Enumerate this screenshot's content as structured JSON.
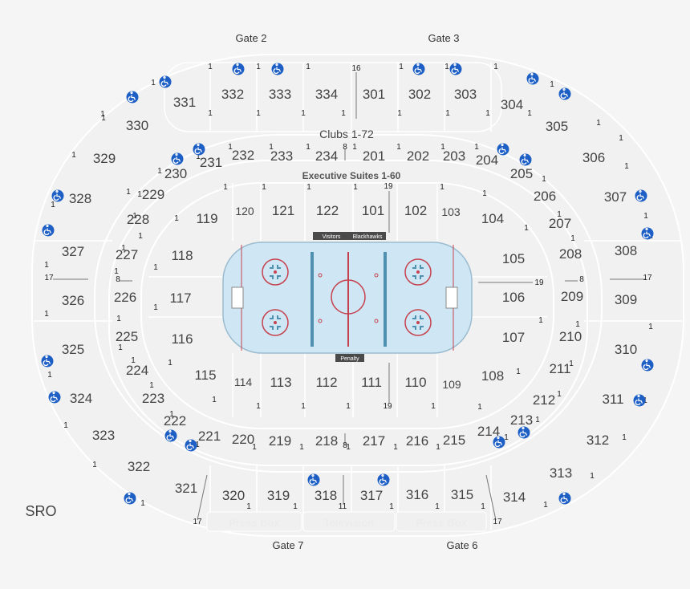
{
  "gates": [
    {
      "id": "gate-2",
      "label": "Gate 2"
    },
    {
      "id": "gate-3",
      "label": "Gate 3"
    },
    {
      "id": "gate-7",
      "label": "Gate 7"
    },
    {
      "id": "gate-6",
      "label": "Gate 6"
    }
  ],
  "bands": {
    "clubs": "Clubs 1-72",
    "suites": "Executive Suites 1-60"
  },
  "sro": "SRO",
  "benches": {
    "visitors": "Visitors",
    "home": "Blackhawks",
    "penalty": "Penalty"
  },
  "media": {
    "press_box_left": "Press Box",
    "television": "Television",
    "press_box_right": "Press Box"
  },
  "colors": {
    "ice": "#cfe6f4",
    "line_red": "#c6414d",
    "line_blue": "#4f8fb0",
    "accessibility": "#1d5fc4",
    "bench": "#4a4a4a"
  },
  "sections": [
    {
      "id": "332",
      "label": "332"
    },
    {
      "id": "333",
      "label": "333"
    },
    {
      "id": "334",
      "label": "334"
    },
    {
      "id": "301",
      "label": "301"
    },
    {
      "id": "302",
      "label": "302"
    },
    {
      "id": "303",
      "label": "303"
    },
    {
      "id": "331",
      "label": "331"
    },
    {
      "id": "330",
      "label": "330"
    },
    {
      "id": "329",
      "label": "329"
    },
    {
      "id": "328",
      "label": "328"
    },
    {
      "id": "327",
      "label": "327"
    },
    {
      "id": "326",
      "label": "326"
    },
    {
      "id": "325",
      "label": "325"
    },
    {
      "id": "324",
      "label": "324"
    },
    {
      "id": "323",
      "label": "323"
    },
    {
      "id": "322",
      "label": "322"
    },
    {
      "id": "321",
      "label": "321"
    },
    {
      "id": "320",
      "label": "320"
    },
    {
      "id": "319",
      "label": "319"
    },
    {
      "id": "318",
      "label": "318"
    },
    {
      "id": "317",
      "label": "317"
    },
    {
      "id": "316",
      "label": "316"
    },
    {
      "id": "315",
      "label": "315"
    },
    {
      "id": "314",
      "label": "314"
    },
    {
      "id": "313",
      "label": "313"
    },
    {
      "id": "312",
      "label": "312"
    },
    {
      "id": "311",
      "label": "311"
    },
    {
      "id": "310",
      "label": "310"
    },
    {
      "id": "309",
      "label": "309"
    },
    {
      "id": "308",
      "label": "308"
    },
    {
      "id": "307",
      "label": "307"
    },
    {
      "id": "306",
      "label": "306"
    },
    {
      "id": "305",
      "label": "305"
    },
    {
      "id": "304",
      "label": "304"
    },
    {
      "id": "232",
      "label": "232"
    },
    {
      "id": "233",
      "label": "233"
    },
    {
      "id": "234",
      "label": "234"
    },
    {
      "id": "201",
      "label": "201"
    },
    {
      "id": "202",
      "label": "202"
    },
    {
      "id": "203",
      "label": "203"
    },
    {
      "id": "204",
      "label": "204"
    },
    {
      "id": "205",
      "label": "205"
    },
    {
      "id": "206",
      "label": "206"
    },
    {
      "id": "207",
      "label": "207"
    },
    {
      "id": "208",
      "label": "208"
    },
    {
      "id": "209",
      "label": "209"
    },
    {
      "id": "210",
      "label": "210"
    },
    {
      "id": "211",
      "label": "211"
    },
    {
      "id": "212",
      "label": "212"
    },
    {
      "id": "213",
      "label": "213"
    },
    {
      "id": "214",
      "label": "214"
    },
    {
      "id": "215",
      "label": "215"
    },
    {
      "id": "216",
      "label": "216"
    },
    {
      "id": "217",
      "label": "217"
    },
    {
      "id": "218",
      "label": "218"
    },
    {
      "id": "219",
      "label": "219"
    },
    {
      "id": "220",
      "label": "220"
    },
    {
      "id": "221",
      "label": "221"
    },
    {
      "id": "222",
      "label": "222"
    },
    {
      "id": "223",
      "label": "223"
    },
    {
      "id": "224",
      "label": "224"
    },
    {
      "id": "225",
      "label": "225"
    },
    {
      "id": "226",
      "label": "226"
    },
    {
      "id": "227",
      "label": "227"
    },
    {
      "id": "228",
      "label": "228"
    },
    {
      "id": "229",
      "label": "229"
    },
    {
      "id": "230",
      "label": "230"
    },
    {
      "id": "231",
      "label": "231"
    },
    {
      "id": "119",
      "label": "119"
    },
    {
      "id": "120",
      "label": "120"
    },
    {
      "id": "121",
      "label": "121"
    },
    {
      "id": "122",
      "label": "122"
    },
    {
      "id": "101",
      "label": "101"
    },
    {
      "id": "102",
      "label": "102"
    },
    {
      "id": "103",
      "label": "103"
    },
    {
      "id": "104",
      "label": "104"
    },
    {
      "id": "105",
      "label": "105"
    },
    {
      "id": "106",
      "label": "106"
    },
    {
      "id": "107",
      "label": "107"
    },
    {
      "id": "108",
      "label": "108"
    },
    {
      "id": "109",
      "label": "109"
    },
    {
      "id": "110",
      "label": "110"
    },
    {
      "id": "111",
      "label": "111"
    },
    {
      "id": "112",
      "label": "112"
    },
    {
      "id": "113",
      "label": "113"
    },
    {
      "id": "114",
      "label": "114"
    },
    {
      "id": "115",
      "label": "115"
    },
    {
      "id": "116",
      "label": "116"
    },
    {
      "id": "117",
      "label": "117"
    },
    {
      "id": "118",
      "label": "118"
    }
  ],
  "row_markers": [
    "1",
    "1",
    "1",
    "1",
    "1",
    "1",
    "1",
    "1",
    "1",
    "1",
    "1",
    "1",
    "1",
    "1",
    "1",
    "1",
    "1",
    "1",
    "1",
    "1",
    "1",
    "1",
    "1",
    "1",
    "1",
    "1",
    "1",
    "1",
    "1",
    "1",
    "1",
    "1",
    "1",
    "1",
    "1",
    "1",
    "1",
    "1",
    "1",
    "1",
    "1",
    "1",
    "1",
    "1",
    "1",
    "1",
    "1",
    "1",
    "1",
    "1",
    "1",
    "1",
    "1",
    "1",
    "1",
    "1",
    "1",
    "1",
    "1",
    "1",
    "1",
    "1",
    "1",
    "1",
    "1",
    "1",
    "1",
    "1",
    "1",
    "1",
    "1",
    "1",
    "1",
    "1",
    "1",
    "1",
    "1",
    "1",
    "1",
    "1",
    "1",
    "1",
    "1",
    "1",
    "1",
    "1",
    "1",
    "1",
    "1",
    "1",
    "1",
    "1",
    "1",
    "1",
    "1",
    "16",
    "17",
    "17",
    "8",
    "8",
    "19",
    "19",
    "8",
    "8",
    "19",
    "11",
    "17",
    "17"
  ]
}
